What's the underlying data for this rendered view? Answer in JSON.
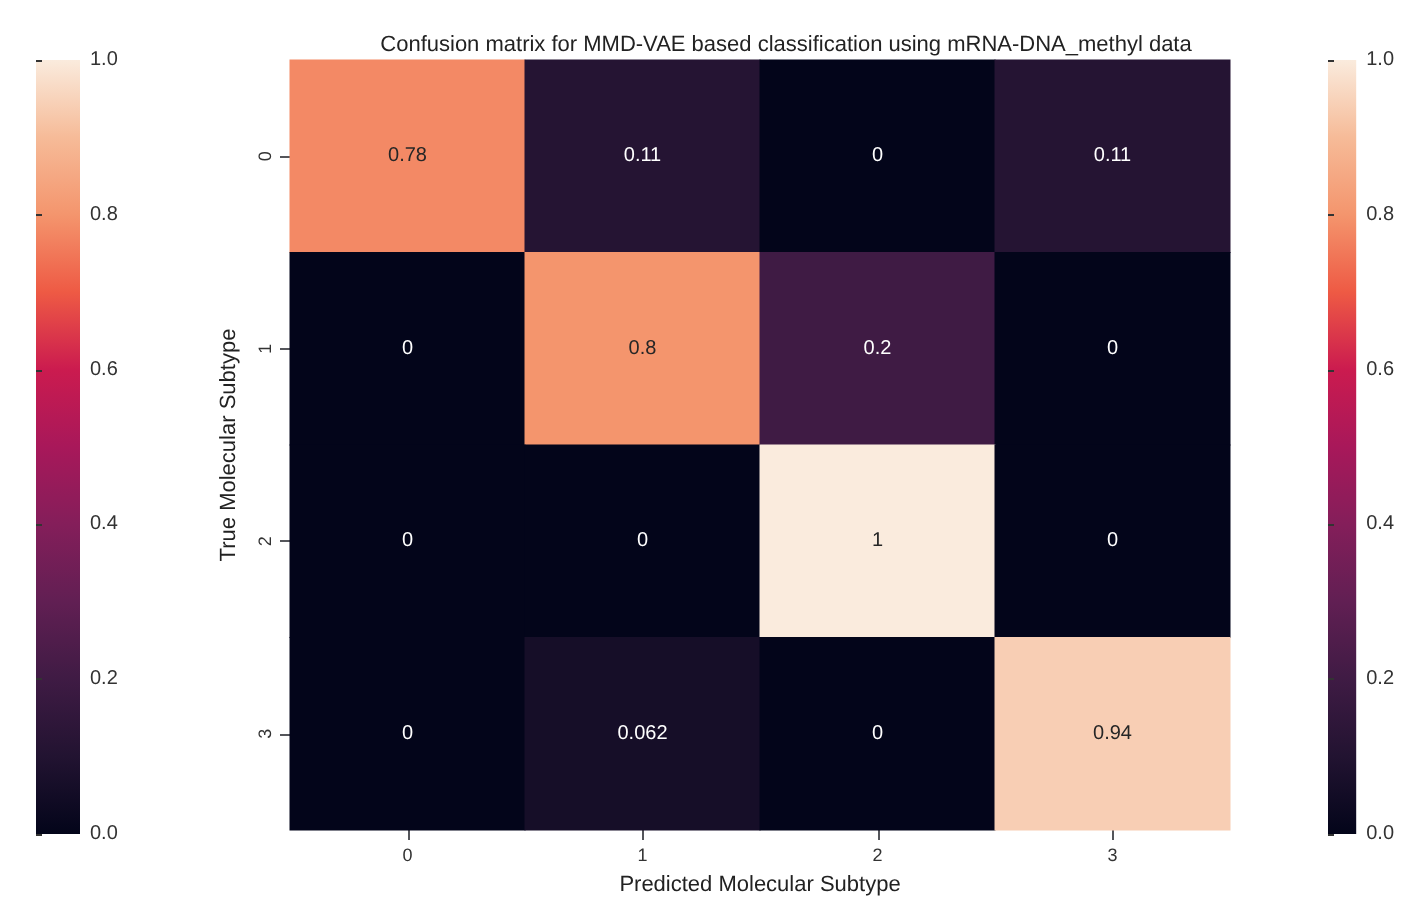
{
  "chart_data": {
    "type": "heatmap",
    "title": "Confusion matrix for MMD-VAE based classification using mRNA-DNA_methyl data",
    "xlabel": "Predicted Molecular Subtype",
    "ylabel": "True Molecular Subtype",
    "categories": [
      "0",
      "1",
      "2",
      "3"
    ],
    "y_categories": [
      "0",
      "1",
      "2",
      "3"
    ],
    "cells": [
      [
        0.78,
        0.11,
        0,
        0.11
      ],
      [
        0,
        0.8,
        0.2,
        0
      ],
      [
        0,
        0,
        1,
        0
      ],
      [
        0,
        0.062,
        0,
        0.94
      ]
    ],
    "data_labels": true,
    "clim": [
      0,
      1
    ],
    "cticks": [
      {
        "value": 0,
        "label": "0.0"
      },
      {
        "value": 0.2,
        "label": "0.2"
      },
      {
        "value": 0.4,
        "label": "0.4"
      },
      {
        "value": 0.6,
        "label": "0.6"
      },
      {
        "value": 0.8,
        "label": "0.8"
      },
      {
        "value": 1,
        "label": "1.0"
      }
    ]
  }
}
